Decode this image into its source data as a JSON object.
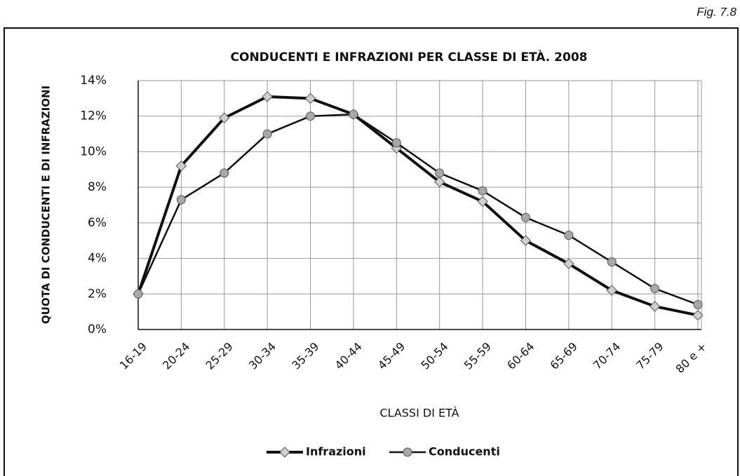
{
  "figure_label": "Fig. 7.8",
  "chart_data": {
    "type": "line",
    "title": "CONDUCENTI E INFRAZIONI PER CLASSE DI ETÀ. 2008",
    "x_label": "CLASSI DI ETÀ",
    "y_label": "QUOTA DI CONDUCENTI E DI INFRAZIONI",
    "categories": [
      "16-19",
      "20-24",
      "25-29",
      "30-34",
      "35-39",
      "40-44",
      "45-49",
      "50-54",
      "55-59",
      "60-64",
      "65-69",
      "70-74",
      "75-79",
      "80 e +"
    ],
    "series": [
      {
        "name": "Infrazioni",
        "color": "#111111",
        "marker": "diamond",
        "marker_color": "#cfcfcf",
        "line_width": 4,
        "values": [
          2.0,
          9.2,
          11.9,
          13.1,
          13.0,
          12.1,
          10.2,
          8.3,
          7.2,
          5.0,
          3.7,
          2.2,
          1.3,
          0.8
        ]
      },
      {
        "name": "Conducenti",
        "color": "#111111",
        "marker": "circle",
        "marker_color": "#a8a8a8",
        "line_width": 2.5,
        "values": [
          2.0,
          7.3,
          8.8,
          11.0,
          12.0,
          12.1,
          10.5,
          8.8,
          7.8,
          6.3,
          5.3,
          3.8,
          2.3,
          1.4
        ]
      }
    ],
    "ylim": [
      0,
      14
    ],
    "yticks": [
      {
        "value": 0,
        "label": "0%"
      },
      {
        "value": 2,
        "label": "2%"
      },
      {
        "value": 4,
        "label": "4%"
      },
      {
        "value": 6,
        "label": "6%"
      },
      {
        "value": 8,
        "label": "8%"
      },
      {
        "value": 10,
        "label": "10%"
      },
      {
        "value": 12,
        "label": "12%"
      },
      {
        "value": 14,
        "label": "14%"
      }
    ],
    "grid": true,
    "legend": "bottom"
  }
}
